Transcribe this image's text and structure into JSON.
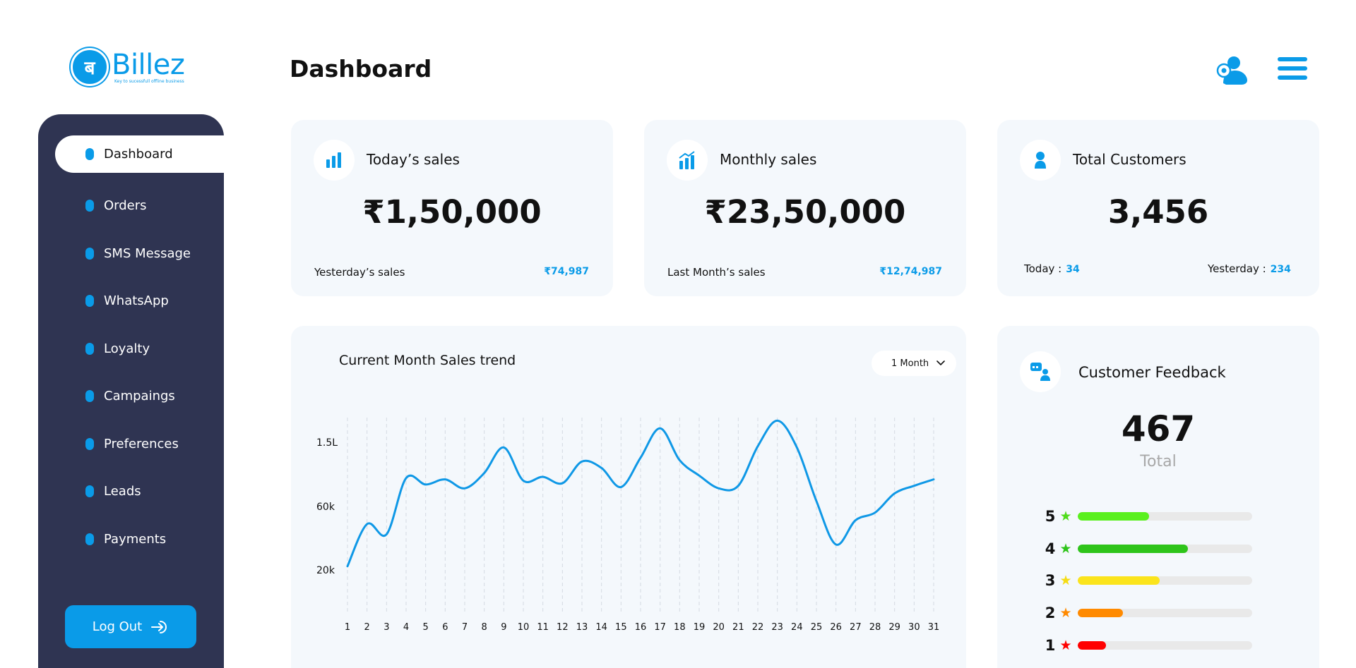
{
  "brand": {
    "name": "Billez",
    "tagline": "Key to sucessfull offline business",
    "mark": "ब"
  },
  "header": {
    "title": "Dashboard"
  },
  "sidebar": {
    "items": [
      {
        "label": "Dashboard",
        "active": true
      },
      {
        "label": "Orders"
      },
      {
        "label": "SMS Message"
      },
      {
        "label": "WhatsApp"
      },
      {
        "label": "Loyalty"
      },
      {
        "label": "Campaings"
      },
      {
        "label": "Preferences"
      },
      {
        "label": "Leads"
      },
      {
        "label": "Payments"
      }
    ],
    "logout_label": "Log Out"
  },
  "stats": {
    "today": {
      "title": "Today’s sales",
      "value": "₹1,50,000",
      "foot_label": "Yesterday’s sales",
      "foot_value": "₹74,987"
    },
    "monthly": {
      "title": "Monthly sales",
      "value": "₹23,50,000",
      "foot_label": "Last Month’s sales",
      "foot_value": "₹12,74,987"
    },
    "customers": {
      "title": "Total Customers",
      "value": "3,456",
      "today_label": "Today :",
      "today_value": "34",
      "yesterday_label": "Yesterday :",
      "yesterday_value": "234"
    }
  },
  "trend": {
    "title": "Current Month Sales trend",
    "period": "1 Month"
  },
  "feedback": {
    "title": "Customer Feedback",
    "total": "467",
    "total_label": "Total",
    "ratings": [
      {
        "stars": "5",
        "fraction": 0.41,
        "color": "#5af01e",
        "star_color": "#4fdc1a"
      },
      {
        "stars": "4",
        "fraction": 0.63,
        "color": "#2ec41a",
        "star_color": "#2ec41a"
      },
      {
        "stars": "3",
        "fraction": 0.47,
        "color": "#fbe41c",
        "star_color": "#f5dc14"
      },
      {
        "stars": "2",
        "fraction": 0.26,
        "color": "#ff8a00",
        "star_color": "#ff8a00"
      },
      {
        "stars": "1",
        "fraction": 0.16,
        "color": "#ff0000",
        "star_color": "#ff0000"
      }
    ]
  },
  "colors": {
    "accent": "#0a9be8",
    "sidebar": "#2f3452",
    "card": "#f4f8fc"
  },
  "chart_data": {
    "type": "line",
    "title": "Current Month Sales trend",
    "xlabel": "",
    "ylabel": "",
    "x": [
      1,
      2,
      3,
      4,
      5,
      6,
      7,
      8,
      9,
      10,
      11,
      12,
      13,
      14,
      15,
      16,
      17,
      18,
      19,
      20,
      21,
      22,
      23,
      24,
      25,
      26,
      27,
      28,
      29,
      30,
      31
    ],
    "yticks": [
      "1.5L",
      "60k",
      "20k"
    ],
    "series": [
      {
        "values": [
          0.09,
          0.42,
          0.34,
          0.78,
          0.73,
          0.77,
          0.7,
          0.82,
          1.02,
          0.76,
          0.79,
          0.74,
          0.91,
          0.86,
          0.71,
          0.94,
          1.17,
          0.92,
          0.8,
          0.7,
          0.72,
          1.03,
          1.23,
          1.02,
          0.6,
          0.26,
          0.45,
          0.51,
          0.66,
          0.72,
          0.77
        ]
      }
    ],
    "value_scale_note": "values in units of 1.5L tick = 1.0 relative to 20k tick = 0",
    "ylim": [
      0,
      1.3
    ],
    "grid": "vertical dashed"
  }
}
